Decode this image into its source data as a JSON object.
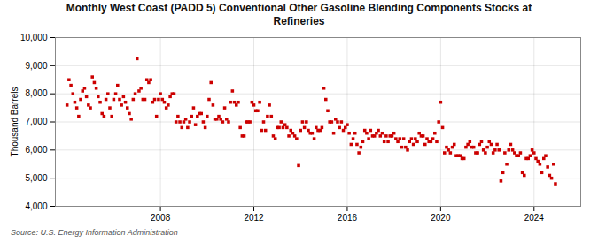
{
  "chart_data": {
    "type": "scatter",
    "title": "Monthly West Coast (PADD 5) Conventional Other Gasoline Blending Components Stocks at\nRefineries",
    "y_label": "Thousand Barrels",
    "source": "Source: U.S. Energy Information Administration",
    "color": "#cc0000",
    "marker": "square",
    "grid": true,
    "xlim": [
      2003.5,
      2026.0
    ],
    "xticks": [
      2008,
      2012,
      2016,
      2020,
      2024
    ],
    "ylim": [
      4000,
      10000
    ],
    "yticks": [
      {
        "value": 4000,
        "label": "4,000"
      },
      {
        "value": 5000,
        "label": "5,000"
      },
      {
        "value": 6000,
        "label": "6,000"
      },
      {
        "value": 7000,
        "label": "7,000"
      },
      {
        "value": 8000,
        "label": "8,000"
      },
      {
        "value": 9000,
        "label": "9,000"
      },
      {
        "value": 10000,
        "label": "10,000"
      }
    ],
    "x": [
      2004.0,
      2004.083,
      2004.167,
      2004.25,
      2004.333,
      2004.417,
      2004.5,
      2004.583,
      2004.667,
      2004.75,
      2004.833,
      2004.917,
      2005.0,
      2005.083,
      2005.167,
      2005.25,
      2005.333,
      2005.417,
      2005.5,
      2005.583,
      2005.667,
      2005.75,
      2005.833,
      2005.917,
      2006.0,
      2006.083,
      2006.167,
      2006.25,
      2006.333,
      2006.417,
      2006.5,
      2006.583,
      2006.667,
      2006.75,
      2006.833,
      2006.917,
      2007.0,
      2007.083,
      2007.167,
      2007.25,
      2007.333,
      2007.417,
      2007.5,
      2007.583,
      2007.667,
      2007.75,
      2007.833,
      2007.917,
      2008.0,
      2008.083,
      2008.167,
      2008.25,
      2008.333,
      2008.417,
      2008.5,
      2008.583,
      2008.667,
      2008.75,
      2008.833,
      2008.917,
      2009.0,
      2009.083,
      2009.167,
      2009.25,
      2009.333,
      2009.417,
      2009.5,
      2009.583,
      2009.667,
      2009.75,
      2009.833,
      2009.917,
      2010.0,
      2010.083,
      2010.167,
      2010.25,
      2010.333,
      2010.417,
      2010.5,
      2010.583,
      2010.667,
      2010.75,
      2010.833,
      2010.917,
      2011.0,
      2011.083,
      2011.167,
      2011.25,
      2011.333,
      2011.417,
      2011.5,
      2011.583,
      2011.667,
      2011.75,
      2011.833,
      2011.917,
      2012.0,
      2012.083,
      2012.167,
      2012.25,
      2012.333,
      2012.417,
      2012.5,
      2012.583,
      2012.667,
      2012.75,
      2012.833,
      2012.917,
      2013.0,
      2013.083,
      2013.167,
      2013.25,
      2013.333,
      2013.417,
      2013.5,
      2013.583,
      2013.667,
      2013.75,
      2013.833,
      2013.917,
      2014.0,
      2014.083,
      2014.167,
      2014.25,
      2014.333,
      2014.417,
      2014.5,
      2014.583,
      2014.667,
      2014.75,
      2014.833,
      2014.917,
      2015.0,
      2015.083,
      2015.167,
      2015.25,
      2015.333,
      2015.417,
      2015.5,
      2015.583,
      2015.667,
      2015.75,
      2015.833,
      2015.917,
      2016.0,
      2016.083,
      2016.167,
      2016.25,
      2016.333,
      2016.417,
      2016.5,
      2016.583,
      2016.667,
      2016.75,
      2016.833,
      2016.917,
      2017.0,
      2017.083,
      2017.167,
      2017.25,
      2017.333,
      2017.417,
      2017.5,
      2017.583,
      2017.667,
      2017.75,
      2017.833,
      2017.917,
      2018.0,
      2018.083,
      2018.167,
      2018.25,
      2018.333,
      2018.417,
      2018.5,
      2018.583,
      2018.667,
      2018.75,
      2018.833,
      2018.917,
      2019.0,
      2019.083,
      2019.167,
      2019.25,
      2019.333,
      2019.417,
      2019.5,
      2019.583,
      2019.667,
      2019.75,
      2019.833,
      2019.917,
      2020.0,
      2020.083,
      2020.167,
      2020.25,
      2020.333,
      2020.417,
      2020.5,
      2020.583,
      2020.667,
      2020.75,
      2020.833,
      2020.917,
      2021.0,
      2021.083,
      2021.167,
      2021.25,
      2021.333,
      2021.417,
      2021.5,
      2021.583,
      2021.667,
      2021.75,
      2021.833,
      2021.917,
      2022.0,
      2022.083,
      2022.167,
      2022.25,
      2022.333,
      2022.417,
      2022.5,
      2022.583,
      2022.667,
      2022.75,
      2022.833,
      2022.917,
      2023.0,
      2023.083,
      2023.167,
      2023.25,
      2023.333,
      2023.417,
      2023.5,
      2023.583,
      2023.667,
      2023.75,
      2023.833,
      2023.917,
      2024.0,
      2024.083,
      2024.167,
      2024.25,
      2024.333,
      2024.417,
      2024.5,
      2024.583,
      2024.667,
      2024.75,
      2024.833,
      2024.917
    ],
    "values": [
      7600,
      8500,
      8300,
      8000,
      7700,
      7500,
      7200,
      7800,
      8100,
      8200,
      7900,
      7600,
      7500,
      8600,
      8400,
      8200,
      7900,
      7700,
      7300,
      7200,
      7800,
      8000,
      7500,
      7200,
      7800,
      8000,
      8300,
      7800,
      7600,
      7900,
      7700,
      7500,
      7300,
      7100,
      7800,
      8000,
      9250,
      8100,
      8200,
      7800,
      7800,
      8500,
      8400,
      8500,
      7700,
      7800,
      7200,
      7800,
      8000,
      7800,
      7700,
      7500,
      7600,
      7900,
      8000,
      8000,
      7000,
      7200,
      7000,
      6800,
      7000,
      7100,
      6800,
      7000,
      7200,
      7500,
      6900,
      7200,
      7300,
      7300,
      7000,
      6800,
      7200,
      7800,
      8400,
      7600,
      7100,
      7100,
      7200,
      7100,
      7000,
      7500,
      7100,
      7000,
      7700,
      8100,
      7700,
      7600,
      7700,
      6800,
      6500,
      6500,
      7000,
      7000,
      7000,
      7700,
      7600,
      7400,
      7400,
      7700,
      6700,
      7000,
      6700,
      7200,
      7600,
      7200,
      6500,
      6400,
      6800,
      6800,
      7000,
      6800,
      6900,
      6800,
      6500,
      6700,
      6600,
      6500,
      6400,
      5450,
      6700,
      7000,
      6800,
      7000,
      6700,
      6600,
      6600,
      6400,
      6800,
      6700,
      6700,
      6800,
      8200,
      7800,
      7400,
      7000,
      7000,
      6600,
      7100,
      7000,
      6800,
      7000,
      6700,
      6800,
      6900,
      6600,
      6200,
      6400,
      6600,
      6200,
      5900,
      6100,
      6300,
      6700,
      6600,
      6400,
      6700,
      6500,
      6500,
      6600,
      6700,
      6500,
      6600,
      6300,
      6500,
      6300,
      6500,
      6500,
      6600,
      6400,
      6300,
      6400,
      6100,
      6400,
      6100,
      6000,
      6300,
      6400,
      6200,
      6400,
      6300,
      6600,
      6500,
      6500,
      6200,
      6400,
      6300,
      6300,
      6400,
      6600,
      6300,
      7000,
      7700,
      6800,
      5900,
      6100,
      6000,
      5900,
      6100,
      6200,
      5800,
      5800,
      5800,
      5700,
      5700,
      6100,
      6200,
      6300,
      6100,
      6100,
      5900,
      5900,
      6200,
      6300,
      6000,
      5900,
      6100,
      6300,
      6200,
      5900,
      6000,
      6200,
      6000,
      4900,
      5200,
      5900,
      5500,
      6000,
      6200,
      6000,
      5900,
      5800,
      5800,
      5900,
      5200,
      5100,
      5700,
      5700,
      5800,
      6000,
      5900,
      5700,
      5600,
      5500,
      5200,
      5700,
      5800,
      5400,
      5100,
      5000,
      5500,
      4800
    ]
  }
}
